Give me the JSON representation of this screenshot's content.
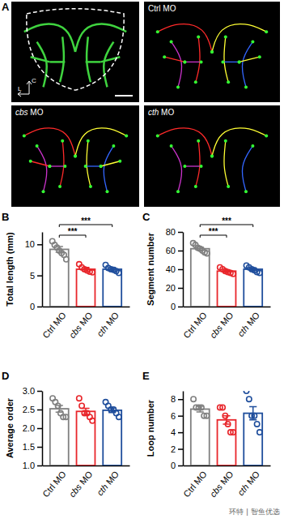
{
  "panel_a": {
    "label": "A",
    "panels": [
      "Ctrl MO",
      "cbs MO",
      "cth MO"
    ],
    "axis_labels": [
      "C",
      "L"
    ]
  },
  "watermark": "环特 | 智鱼优选",
  "chart_data": [
    {
      "type": "bar",
      "title": "B",
      "y_label": "Total length (mm)",
      "categories": [
        "Ctrl MO",
        "cbs MO",
        "cth MO"
      ],
      "values": [
        9.2,
        6.0,
        6.0
      ],
      "errors": [
        0.45,
        0.3,
        0.25
      ],
      "points": [
        [
          10.5,
          9.9,
          9.5,
          9.0,
          8.6,
          8.3,
          7.6
        ],
        [
          6.8,
          6.3,
          6.0,
          5.8,
          5.6,
          5.5
        ],
        [
          6.7,
          6.2,
          6.0,
          5.9,
          5.7,
          5.4
        ]
      ],
      "colors": [
        "#808080",
        "#e8262b",
        "#1f4e9c"
      ],
      "ylim": [
        0,
        12
      ],
      "yticks": [
        0,
        5,
        10
      ],
      "annotations": [
        {
          "text": "***",
          "from": 0,
          "to": 1
        },
        {
          "text": "***",
          "from": 0,
          "to": 2
        }
      ]
    },
    {
      "type": "bar",
      "title": "C",
      "y_label": "Segment number",
      "categories": [
        "Ctrl MO",
        "cbs MO",
        "cth MO"
      ],
      "values": [
        62,
        38,
        40
      ],
      "errors": [
        1.6,
        1.2,
        1.3
      ],
      "points": [
        [
          68,
          66,
          63,
          62,
          60,
          58,
          57
        ],
        [
          42,
          40,
          38,
          37,
          36,
          35
        ],
        [
          44,
          42,
          40,
          39,
          37,
          36
        ]
      ],
      "colors": [
        "#808080",
        "#e8262b",
        "#1f4e9c"
      ],
      "ylim": [
        0,
        80
      ],
      "yticks": [
        0,
        20,
        40,
        60,
        80
      ],
      "annotations": [
        {
          "text": "***",
          "from": 0,
          "to": 1
        },
        {
          "text": "***",
          "from": 0,
          "to": 2
        }
      ]
    },
    {
      "type": "bar",
      "title": "D",
      "y_label": "Average order",
      "categories": [
        "Ctrl MO",
        "cbs MO",
        "cth MO"
      ],
      "values": [
        2.52,
        2.45,
        2.48
      ],
      "errors": [
        0.09,
        0.08,
        0.06
      ],
      "points": [
        [
          2.8,
          2.7,
          2.6,
          2.4,
          2.3,
          2.3
        ],
        [
          2.8,
          2.6,
          2.4,
          2.4,
          2.3,
          2.2
        ],
        [
          2.7,
          2.6,
          2.5,
          2.5,
          2.4,
          2.3
        ]
      ],
      "colors": [
        "#808080",
        "#e8262b",
        "#1f4e9c"
      ],
      "ylim": [
        1.0,
        3.0
      ],
      "yticks": [
        {
          "value": 1.0,
          "label": "1.0"
        },
        {
          "value": 1.5,
          "label": "1.5"
        },
        {
          "value": 2.0,
          "label": "2.0"
        },
        {
          "value": 2.5,
          "label": "2.5"
        },
        {
          "value": 3.0,
          "label": "3.0"
        }
      ]
    },
    {
      "type": "bar",
      "title": "E",
      "y_label": "Loop number",
      "categories": [
        "Ctrl MO",
        "cbs MO",
        "cth MO"
      ],
      "values": [
        6.8,
        5.5,
        6.3
      ],
      "errors": [
        0.35,
        0.5,
        0.8
      ],
      "points": [
        [
          8,
          7,
          7,
          7,
          6,
          6
        ],
        [
          7,
          7,
          6,
          5,
          4,
          4
        ],
        [
          9,
          8,
          6,
          6,
          5,
          4
        ]
      ],
      "colors": [
        "#808080",
        "#e8262b",
        "#1f4e9c"
      ],
      "ylim": [
        0,
        9
      ],
      "yticks": [
        0,
        2,
        4,
        6,
        8
      ]
    }
  ]
}
